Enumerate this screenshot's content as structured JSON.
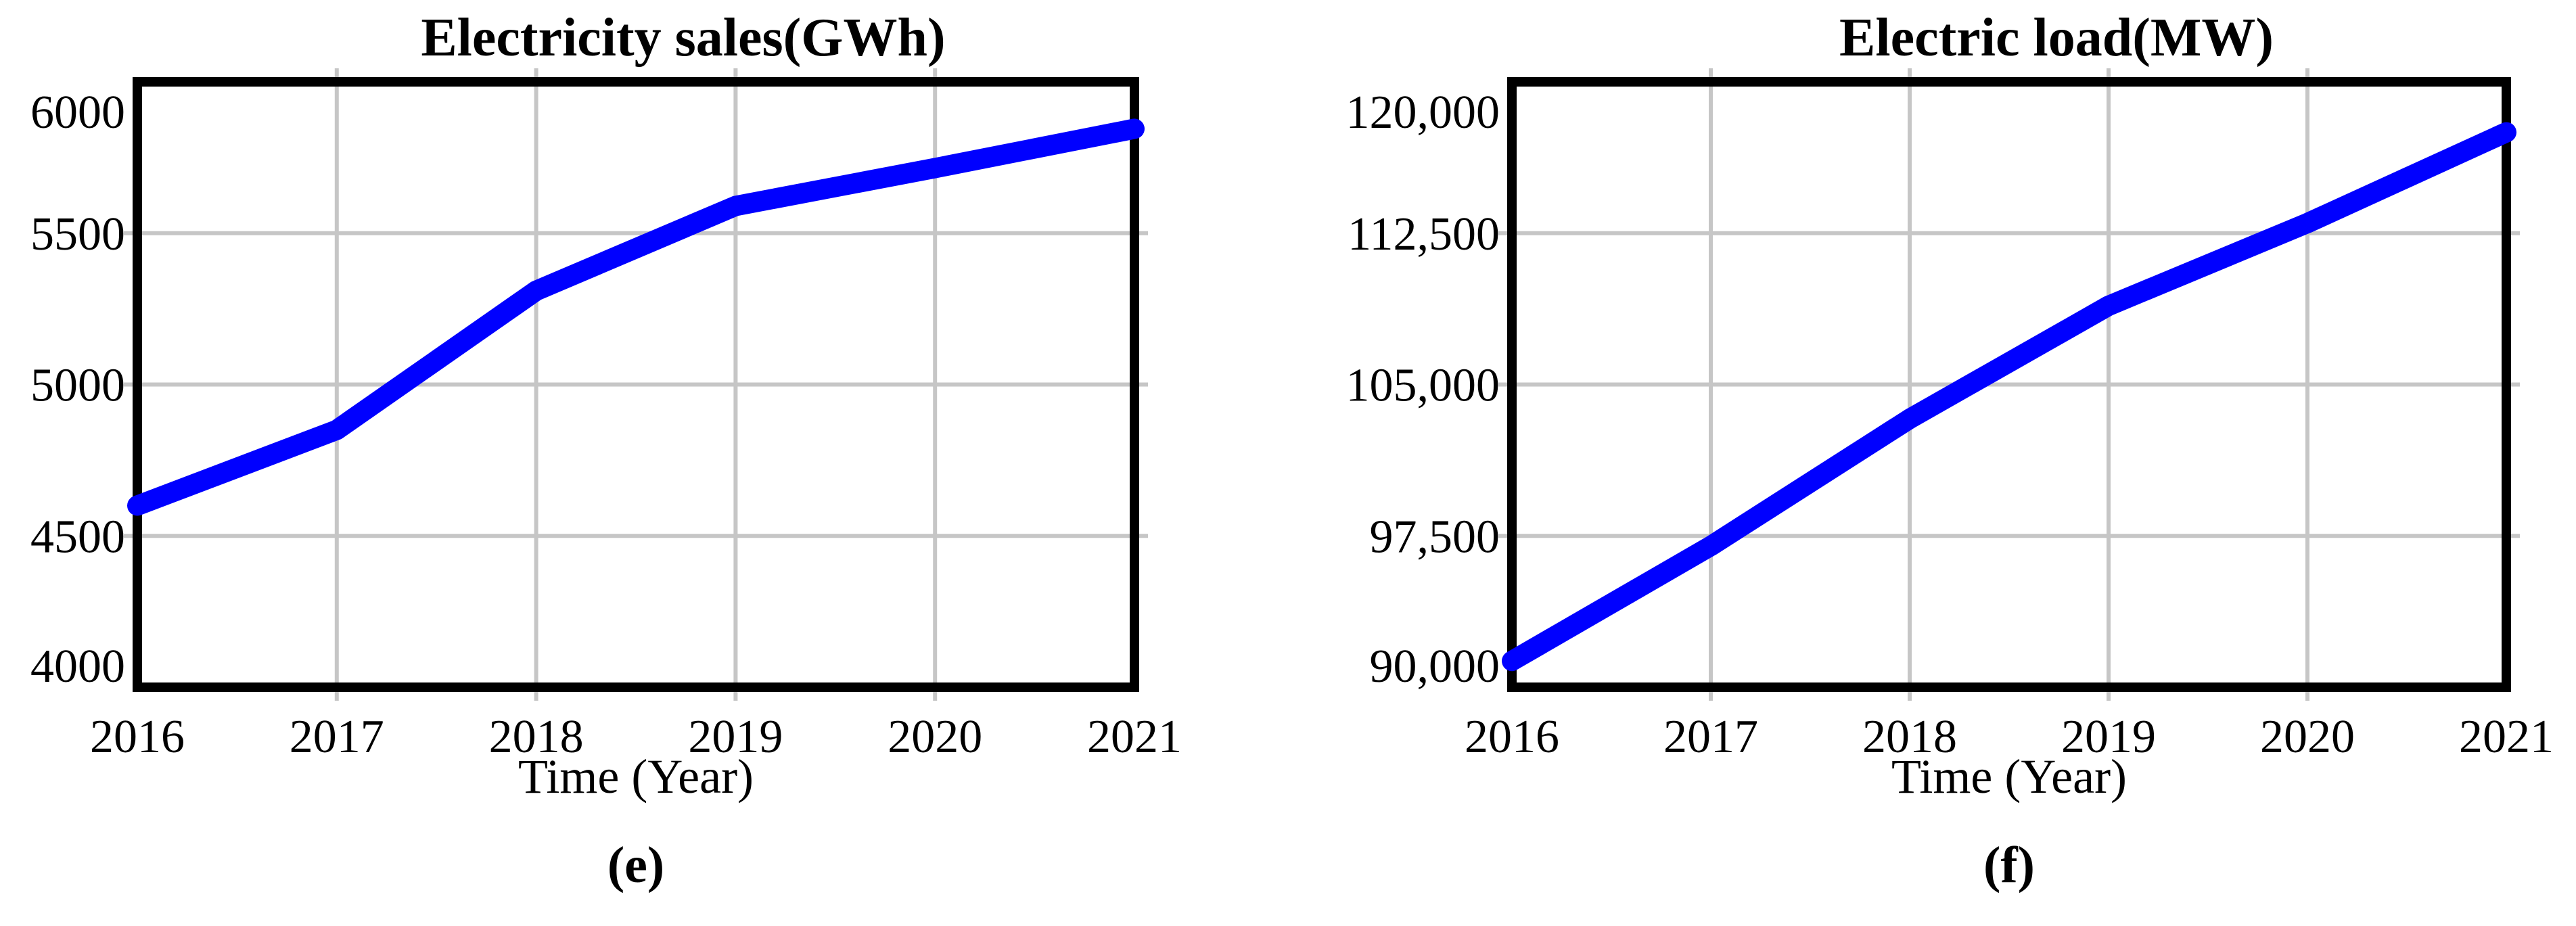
{
  "figure": {
    "background": "#ffffff",
    "frame_color": "#000000",
    "text_color": "#000000"
  },
  "chart_data": [
    {
      "type": "line",
      "panel_id": "e",
      "title": "Electricity sales(GWh)",
      "xlabel": "Time (Year)",
      "caption": "(e)",
      "legend": "none",
      "grid": "on",
      "line_color": "#0000ff",
      "grid_color": "#c6c6c6",
      "x": [
        2016,
        2017,
        2018,
        2019,
        2020,
        2021
      ],
      "x_tick_labels": [
        "2016",
        "2017",
        "2018",
        "2019",
        "2020",
        "2021"
      ],
      "values": [
        4600,
        4850,
        5310,
        5590,
        5715,
        5845
      ],
      "ylim": [
        4000,
        6000
      ],
      "yticks": [
        {
          "value": 4000,
          "label": "4000"
        },
        {
          "value": 4500,
          "label": "4500"
        },
        {
          "value": 5000,
          "label": "5000"
        },
        {
          "value": 5500,
          "label": "5500"
        },
        {
          "value": 6000,
          "label": "6000"
        }
      ]
    },
    {
      "type": "line",
      "panel_id": "f",
      "title": "Electric load(MW)",
      "xlabel": "Time (Year)",
      "caption": "(f)",
      "legend": "none",
      "grid": "on",
      "line_color": "#0000ff",
      "grid_color": "#c6c6c6",
      "x": [
        2016,
        2017,
        2018,
        2019,
        2020,
        2021
      ],
      "x_tick_labels": [
        "2016",
        "2017",
        "2018",
        "2019",
        "2020",
        "2021"
      ],
      "values": [
        91300,
        97000,
        103300,
        108900,
        113000,
        117500
      ],
      "ylim": [
        90000,
        120000
      ],
      "yticks": [
        {
          "value": 90000,
          "label": "90,000"
        },
        {
          "value": 97500,
          "label": "97,500"
        },
        {
          "value": 105000,
          "label": "105,000"
        },
        {
          "value": 112500,
          "label": "112,500"
        },
        {
          "value": 120000,
          "label": "120,000"
        }
      ]
    }
  ]
}
